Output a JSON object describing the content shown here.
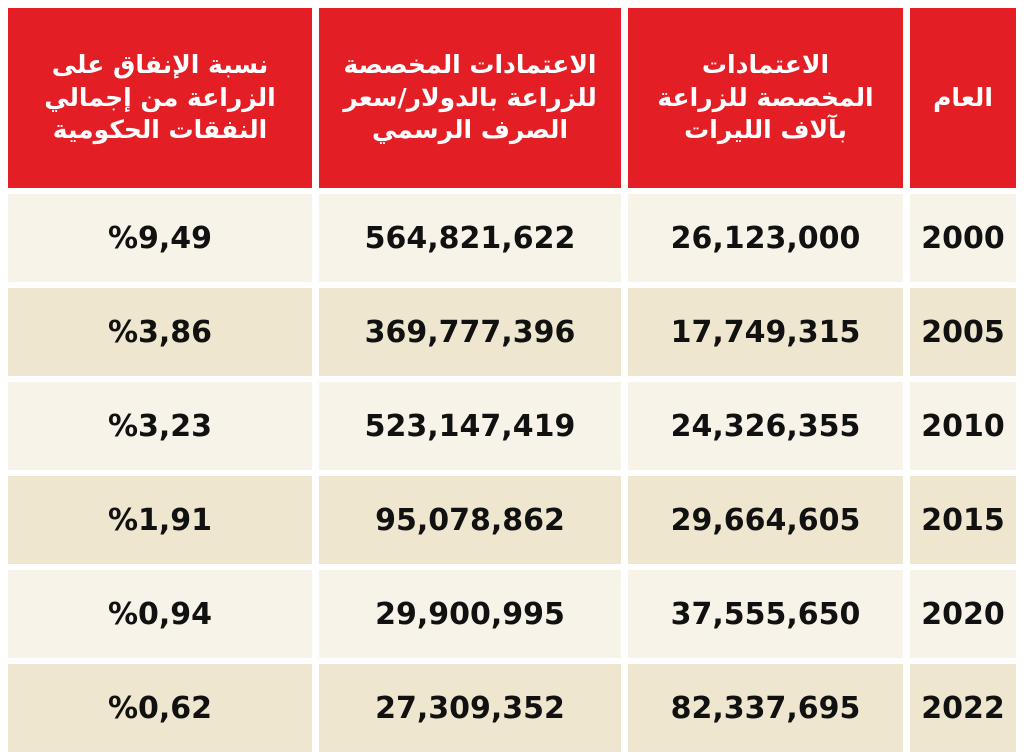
{
  "table": {
    "header": [
      "العام",
      "الاعتمادات\nالمخصصة للزراعة\nبآلاف الليرات",
      "الاعتمادات المخصصة\nللزراعة بالدولار/سعر\nالصرف الرسمي",
      "نسبة الإنفاق على\nالزراعة من إجمالي\nالنفقات الحكومية"
    ],
    "rows": [
      [
        "2000",
        "26,123,000",
        "564,821,622",
        "%9,49"
      ],
      [
        "2005",
        "17,749,315",
        "369,777,396",
        "%3,86"
      ],
      [
        "2010",
        "24,326,355",
        "523,147,419",
        "%3,23"
      ],
      [
        "2015",
        "29,664,605",
        "95,078,862",
        "%1,91"
      ],
      [
        "2020",
        "37,555,650",
        "29,900,995",
        "%0,94"
      ],
      [
        "2022",
        "82,337,695",
        "27,309,352",
        "%0,62"
      ]
    ]
  }
}
